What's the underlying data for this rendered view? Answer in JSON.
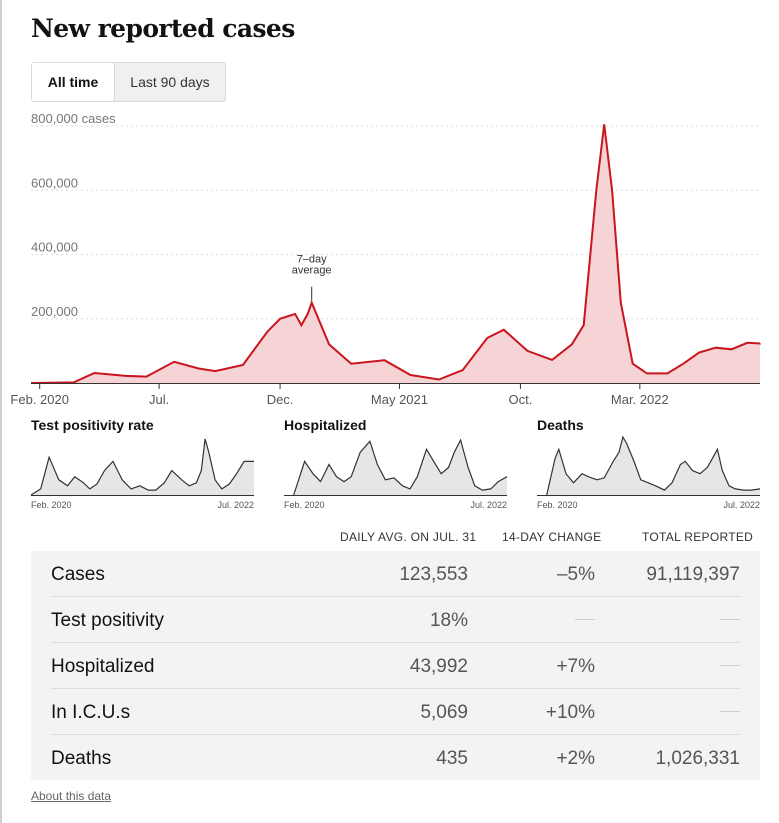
{
  "title": "New reported cases",
  "toggle": {
    "all_time": "All time",
    "last_90": "Last 90 days"
  },
  "colors": {
    "cases_line": "#c9151e",
    "cases_fill": "#f6d3d5",
    "mini_line": "#333333",
    "mini_fill": "#e6e6e6",
    "table_bg": "#f3f3f3"
  },
  "chart_data": [
    {
      "type": "area",
      "title": "",
      "ylabel": "cases",
      "ylim": [
        0,
        800000
      ],
      "yticks": [
        {
          "v": 800000,
          "label": "800,000 cases"
        },
        {
          "v": 600000,
          "label": "600,000"
        },
        {
          "v": 400000,
          "label": "400,000"
        },
        {
          "v": 200000,
          "label": "200,000"
        }
      ],
      "xticks": [
        {
          "x": "2020-02-01",
          "label": "Feb. 2020"
        },
        {
          "x": "2020-07-01",
          "label": "Jul."
        },
        {
          "x": "2020-12-01",
          "label": "Dec."
        },
        {
          "x": "2021-05-01",
          "label": "May 2021"
        },
        {
          "x": "2021-10-01",
          "label": "Oct."
        },
        {
          "x": "2022-03-01",
          "label": "Mar. 2022"
        }
      ],
      "annotation": {
        "x": "2021-01-10",
        "y": 250000,
        "lines": [
          "7–day",
          "average"
        ]
      },
      "x_end": "2022-07-31",
      "series": [
        {
          "x": [
            "2020-01-21",
            "2020-03-15",
            "2020-04-10",
            "2020-05-20",
            "2020-06-15",
            "2020-07-20",
            "2020-08-20",
            "2020-09-10",
            "2020-10-15",
            "2020-11-15",
            "2020-12-01",
            "2020-12-20",
            "2020-12-28",
            "2021-01-05",
            "2021-01-10",
            "2021-02-01",
            "2021-03-01",
            "2021-04-12",
            "2021-05-15",
            "2021-06-20",
            "2021-07-20",
            "2021-08-20",
            "2021-09-10",
            "2021-10-10",
            "2021-11-10",
            "2021-12-05",
            "2021-12-20",
            "2022-01-05",
            "2022-01-15",
            "2022-01-25",
            "2022-02-05",
            "2022-02-20",
            "2022-03-10",
            "2022-04-05",
            "2022-04-25",
            "2022-05-15",
            "2022-06-05",
            "2022-06-25",
            "2022-07-15",
            "2022-07-31"
          ],
          "y": [
            0,
            2000,
            31000,
            22000,
            20000,
            66000,
            45000,
            37000,
            56000,
            160000,
            200000,
            215000,
            180000,
            215000,
            250000,
            120000,
            60000,
            71000,
            25000,
            11000,
            40000,
            140000,
            166000,
            100000,
            72000,
            120000,
            180000,
            600000,
            805000,
            600000,
            250000,
            60000,
            30000,
            30000,
            60000,
            95000,
            110000,
            105000,
            125000,
            123000
          ]
        }
      ]
    },
    {
      "type": "area",
      "title": "Test positivity rate",
      "xticks": [
        {
          "x": "2020-02-01",
          "label": "Feb. 2020"
        },
        {
          "x": "2022-07-01",
          "label": "Jul. 2022"
        }
      ],
      "x_start": "2020-01-21",
      "x_end": "2022-07-31",
      "ylim": [
        0,
        100
      ],
      "series": [
        {
          "x": [
            "2020-01-21",
            "2020-03-01",
            "2020-04-05",
            "2020-05-15",
            "2020-06-20",
            "2020-07-20",
            "2020-08-25",
            "2020-09-20",
            "2020-10-20",
            "2020-11-20",
            "2020-12-25",
            "2021-02-01",
            "2021-03-10",
            "2021-04-15",
            "2021-05-20",
            "2021-06-20",
            "2021-07-25",
            "2021-08-25",
            "2021-10-05",
            "2021-11-05",
            "2021-12-05",
            "2021-12-25",
            "2022-01-10",
            "2022-01-25",
            "2022-02-20",
            "2022-03-20",
            "2022-04-20",
            "2022-05-20",
            "2022-06-20",
            "2022-07-31"
          ],
          "y": [
            0,
            10,
            62,
            25,
            15,
            30,
            20,
            10,
            18,
            40,
            55,
            25,
            10,
            15,
            8,
            8,
            20,
            40,
            25,
            15,
            20,
            40,
            92,
            70,
            25,
            10,
            18,
            35,
            55,
            55
          ]
        }
      ]
    },
    {
      "type": "area",
      "title": "Hospitalized",
      "xticks": [
        {
          "x": "2020-02-01",
          "label": "Feb. 2020"
        },
        {
          "x": "2022-07-01",
          "label": "Jul. 2022"
        }
      ],
      "x_start": "2020-01-21",
      "x_end": "2022-07-31",
      "ylim": [
        0,
        100
      ],
      "series": [
        {
          "x": [
            "2020-03-01",
            "2020-04-15",
            "2020-05-20",
            "2020-06-20",
            "2020-07-25",
            "2020-08-25",
            "2020-09-25",
            "2020-10-25",
            "2020-12-01",
            "2021-01-10",
            "2021-02-10",
            "2021-03-15",
            "2021-04-20",
            "2021-05-25",
            "2021-06-25",
            "2021-07-25",
            "2021-09-01",
            "2021-10-01",
            "2021-11-01",
            "2021-12-01",
            "2021-12-25",
            "2022-01-20",
            "2022-02-20",
            "2022-03-20",
            "2022-04-20",
            "2022-05-25",
            "2022-06-25",
            "2022-07-31"
          ],
          "y": [
            0,
            55,
            35,
            22,
            50,
            30,
            22,
            30,
            70,
            88,
            50,
            25,
            28,
            15,
            10,
            30,
            75,
            55,
            35,
            45,
            70,
            90,
            45,
            15,
            8,
            10,
            22,
            30
          ]
        }
      ]
    },
    {
      "type": "area",
      "title": "Deaths",
      "xticks": [
        {
          "x": "2020-02-01",
          "label": "Feb. 2020"
        },
        {
          "x": "2022-07-01",
          "label": "Jul. 2022"
        }
      ],
      "x_start": "2020-01-21",
      "x_end": "2022-07-31",
      "ylim": [
        0,
        100
      ],
      "series": [
        {
          "x": [
            "2020-03-01",
            "2020-04-05",
            "2020-04-20",
            "2020-05-20",
            "2020-06-20",
            "2020-07-25",
            "2020-08-20",
            "2020-09-25",
            "2020-10-25",
            "2020-12-01",
            "2020-12-25",
            "2021-01-10",
            "2021-01-25",
            "2021-02-25",
            "2021-03-25",
            "2021-04-25",
            "2021-05-25",
            "2021-07-01",
            "2021-08-01",
            "2021-09-05",
            "2021-09-25",
            "2021-10-25",
            "2021-11-25",
            "2021-12-25",
            "2022-01-15",
            "2022-02-05",
            "2022-02-25",
            "2022-03-25",
            "2022-04-20",
            "2022-05-25",
            "2022-06-25",
            "2022-07-31"
          ],
          "y": [
            0,
            60,
            75,
            35,
            20,
            35,
            30,
            25,
            28,
            55,
            70,
            95,
            85,
            55,
            25,
            20,
            15,
            8,
            20,
            50,
            55,
            40,
            35,
            45,
            60,
            75,
            40,
            15,
            10,
            8,
            8,
            10
          ]
        }
      ]
    }
  ],
  "stats": {
    "headers": {
      "daily": "DAILY AVG. ON JUL. 31",
      "change": "14-DAY CHANGE",
      "total": "TOTAL REPORTED"
    },
    "rows": [
      {
        "label": "Cases",
        "daily": "123,553",
        "change": "–5%",
        "total": "91,119,397"
      },
      {
        "label": "Test positivity",
        "daily": "18%",
        "change": "",
        "total": ""
      },
      {
        "label": "Hospitalized",
        "daily": "43,992",
        "change": "+7%",
        "total": ""
      },
      {
        "label": "In I.C.U.s",
        "daily": "5,069",
        "change": "+10%",
        "total": ""
      },
      {
        "label": "Deaths",
        "daily": "435",
        "change": "+2%",
        "total": "1,026,331"
      }
    ]
  },
  "about_link": "About this data"
}
